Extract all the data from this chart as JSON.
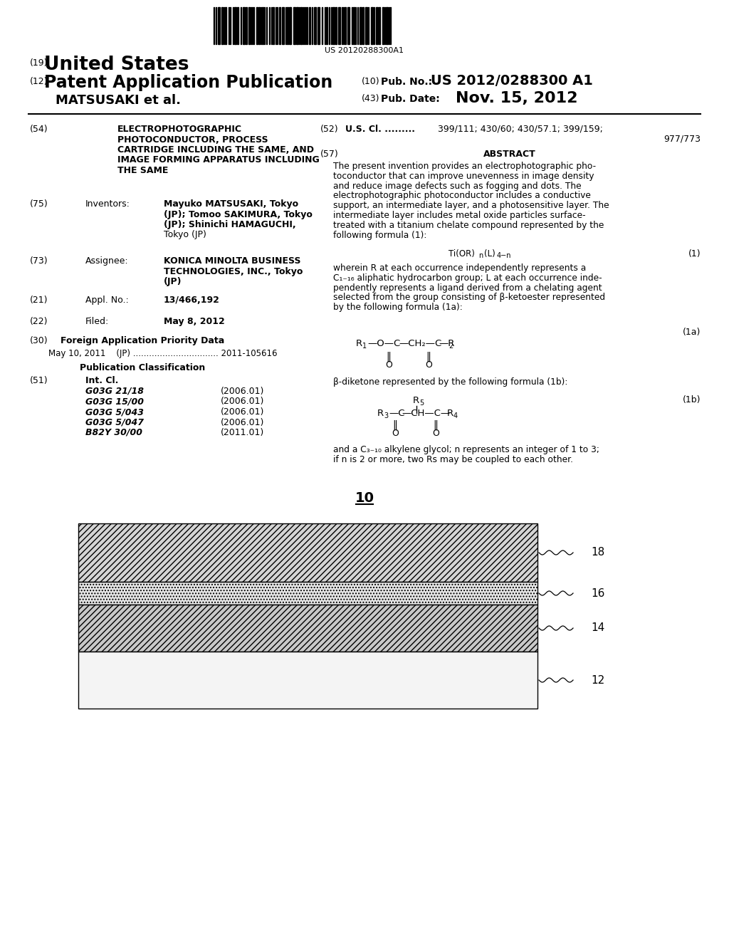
{
  "background_color": "#ffffff",
  "barcode_text": "US 20120288300A1",
  "pub_no_label": "(10) Pub. No.:",
  "pub_no_value": "US 2012/0288300 A1",
  "inventors_label": "MATSUSAKI et al.",
  "pub_date_label": "(43) Pub. Date:",
  "pub_date_value": "Nov. 15, 2012",
  "field54_label": "(54)",
  "field54_lines": [
    "ELECTROPHOTOGRAPHIC",
    "PHOTOCONDUCTOR, PROCESS",
    "CARTRIDGE INCLUDING THE SAME, AND",
    "IMAGE FORMING APPARATUS INCLUDING",
    "THE SAME"
  ],
  "field75_label": "(75)",
  "field75_key": "Inventors:",
  "field75_lines": [
    "Mayuko MATSUSAKI, Tokyo",
    "(JP); Tomoo SAKIMURA, Tokyo",
    "(JP); Shinichi HAMAGUCHI,",
    "Tokyo (JP)"
  ],
  "field73_label": "(73)",
  "field73_key": "Assignee:",
  "field73_lines": [
    "KONICA MINOLTA BUSINESS",
    "TECHNOLOGIES, INC., Tokyo",
    "(JP)"
  ],
  "field21_label": "(21)",
  "field21_key": "Appl. No.:",
  "field21_text": "13/466,192",
  "field22_label": "(22)",
  "field22_key": "Filed:",
  "field22_text": "May 8, 2012",
  "field30_label": "(30)",
  "field30_key": "Foreign Application Priority Data",
  "field30_line": "May 10, 2011    (JP) ................................ 2011-105616",
  "pub_class_title": "Publication Classification",
  "field51_label": "(51)",
  "field51_key": "Int. Cl.",
  "field51_classes": [
    [
      "G03G 21/18",
      "(2006.01)"
    ],
    [
      "G03G 15/00",
      "(2006.01)"
    ],
    [
      "G03G 5/043",
      "(2006.01)"
    ],
    [
      "G03G 5/047",
      "(2006.01)"
    ],
    [
      "B82Y 30/00",
      "(2011.01)"
    ]
  ],
  "field52_label": "(52)",
  "field52_key": "U.S. Cl. ..........",
  "field52_value": "399/111; 430/60; 430/57.1; 399/159;",
  "field52_value2": "977/773",
  "field57_label": "(57)",
  "field57_key": "ABSTRACT",
  "abstract_lines": [
    "The present invention provides an electrophotographic pho-",
    "toconductor that can improve unevenness in image density",
    "and reduce image defects such as fogging and dots. The",
    "electrophotographic photoconductor includes a conductive",
    "support, an intermediate layer, and a photosensitive layer. The",
    "intermediate layer includes metal oxide particles surface-",
    "treated with a titanium chelate compound represented by the",
    "following formula (1):"
  ],
  "formula1_label": "(1)",
  "formula1a_desc_lines": [
    "wherein R at each occurrence independently represents a",
    "C",
    "1-16",
    " aliphatic hydrocarbon group; L at each occurrence inde-",
    "pendently represents a ligand derived from a chelating agent",
    "selected from the group consisting of β-ketoester represented",
    "by the following formula (1a):"
  ],
  "formula1a_label": "(1a)",
  "formula1b_desc": "β-diketone represented by the following formula (1b):",
  "formula1b_label": "(1b)",
  "final_text_lines": [
    "and a C",
    "3-10",
    " alkylene glycol; n represents an integer of 1 to 3;",
    "if n is 2 or more, two Rs may be coupled to each other."
  ],
  "diagram_label": "10",
  "layer_labels": [
    "18",
    "16",
    "14",
    "12"
  ]
}
